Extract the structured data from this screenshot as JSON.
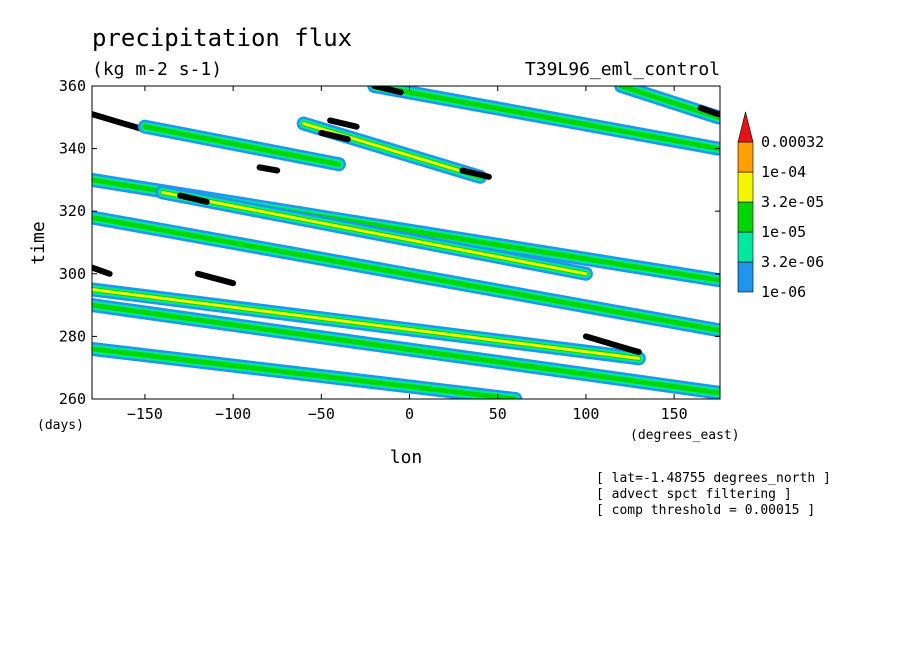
{
  "chart_data": {
    "type": "heatmap",
    "title": "precipitation flux",
    "subtitle": "(kg m-2 s-1)",
    "experiment": "T39L96_eml_control",
    "xlabel": "lon",
    "xunits": "(degrees_east)",
    "ylabel": "time",
    "yunits": "(days)",
    "xlim": [
      -180,
      176
    ],
    "ylim": [
      260,
      360
    ],
    "xticks": [
      -150,
      -100,
      -50,
      0,
      50,
      100,
      150
    ],
    "yticks": [
      260,
      280,
      300,
      320,
      340,
      360
    ],
    "grid": false,
    "legend": {
      "placement": "right",
      "levels": [
        "1e-06",
        "3.2e-06",
        "1e-05",
        "3.2e-05",
        "1e-04",
        "0.00032"
      ],
      "colors": [
        "#1e96f0",
        "#00e8a0",
        "#00d700",
        "#f5f500",
        "#ffa000",
        "#e61414"
      ]
    },
    "notes": [
      "[ lat=-1.48755 degrees_north ]",
      "[ advect spct filtering ]",
      "[ comp threshold = 0.00015 ]"
    ],
    "bands": [
      {
        "x0": -180,
        "t0": 351,
        "x1": -150,
        "t1": 346,
        "level": 5
      },
      {
        "x0": -150,
        "t0": 347,
        "x1": -40,
        "t1": 335,
        "level": 2
      },
      {
        "x0": -60,
        "t0": 348,
        "x1": 40,
        "t1": 331,
        "level": 3
      },
      {
        "x0": -50,
        "t0": 345,
        "x1": -35,
        "t1": 343,
        "level": 5
      },
      {
        "x0": -45,
        "t0": 349,
        "x1": -30,
        "t1": 347,
        "level": 5
      },
      {
        "x0": -20,
        "t0": 360,
        "x1": 175,
        "t1": 340,
        "level": 2
      },
      {
        "x0": -20,
        "t0": 360,
        "x1": -5,
        "t1": 358,
        "level": 5
      },
      {
        "x0": 30,
        "t0": 333,
        "x1": 45,
        "t1": 331,
        "level": 5
      },
      {
        "x0": -180,
        "t0": 330,
        "x1": 175,
        "t1": 298,
        "level": 2
      },
      {
        "x0": -140,
        "t0": 326,
        "x1": 100,
        "t1": 300,
        "level": 3
      },
      {
        "x0": -130,
        "t0": 325,
        "x1": -115,
        "t1": 323,
        "level": 5
      },
      {
        "x0": -85,
        "t0": 334,
        "x1": -75,
        "t1": 333,
        "level": 5
      },
      {
        "x0": -180,
        "t0": 302,
        "x1": -170,
        "t1": 300,
        "level": 5
      },
      {
        "x0": -180,
        "t0": 318,
        "x1": 175,
        "t1": 282,
        "level": 2
      },
      {
        "x0": -120,
        "t0": 300,
        "x1": -100,
        "t1": 297,
        "level": 5
      },
      {
        "x0": -180,
        "t0": 295,
        "x1": 130,
        "t1": 273,
        "level": 3
      },
      {
        "x0": -180,
        "t0": 290,
        "x1": 175,
        "t1": 262,
        "level": 2
      },
      {
        "x0": 100,
        "t0": 280,
        "x1": 130,
        "t1": 275,
        "level": 5
      },
      {
        "x0": -180,
        "t0": 276,
        "x1": 60,
        "t1": 260,
        "level": 2
      },
      {
        "x0": 120,
        "t0": 360,
        "x1": 175,
        "t1": 350,
        "level": 2
      },
      {
        "x0": 165,
        "t0": 353,
        "x1": 175,
        "t1": 351,
        "level": 5
      }
    ]
  }
}
